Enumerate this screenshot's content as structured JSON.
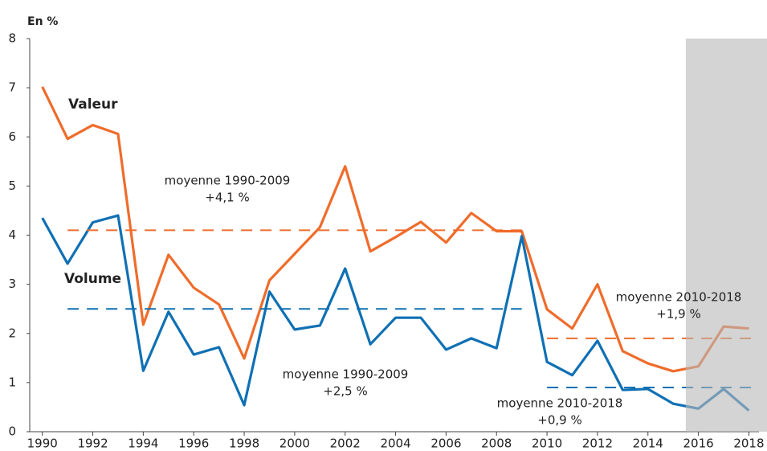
{
  "chart_data": {
    "type": "line",
    "y_axis_label": "En %",
    "x": [
      1990,
      1991,
      1992,
      1993,
      1994,
      1995,
      1996,
      1997,
      1998,
      1999,
      2000,
      2001,
      2002,
      2003,
      2004,
      2005,
      2006,
      2007,
      2008,
      2009,
      2010,
      2011,
      2012,
      2013,
      2014,
      2015,
      2016,
      2017,
      2018
    ],
    "series": [
      {
        "name": "Valeur",
        "color": "#ef6c2b",
        "values": [
          7.02,
          5.96,
          6.24,
          6.06,
          2.18,
          3.6,
          2.93,
          2.59,
          1.49,
          3.08,
          3.62,
          4.16,
          5.4,
          3.67,
          3.96,
          4.27,
          3.85,
          4.45,
          4.08,
          4.08,
          2.49,
          2.1,
          3.0,
          1.64,
          1.39,
          1.23,
          1.33,
          2.14,
          2.1
        ]
      },
      {
        "name": "Volume",
        "color": "#0f70b4",
        "values": [
          4.35,
          3.42,
          4.26,
          4.4,
          1.24,
          2.44,
          1.57,
          1.72,
          0.54,
          2.85,
          2.08,
          2.16,
          3.32,
          1.78,
          2.32,
          2.32,
          1.67,
          1.9,
          1.7,
          3.98,
          1.42,
          1.15,
          1.85,
          0.85,
          0.87,
          0.57,
          0.47,
          0.87,
          0.43
        ]
      }
    ],
    "averages": [
      {
        "series": 0,
        "label": "moyenne 1990-2009",
        "value_label": "+4,1 %",
        "value": 4.1,
        "period": [
          1991,
          2009
        ]
      },
      {
        "series": 1,
        "label": "moyenne 1990-2009",
        "value_label": "+2,5 %",
        "value": 2.5,
        "period": [
          1991,
          2009
        ]
      },
      {
        "series": 0,
        "label": "moyenne 2010-2018",
        "value_label": "+1,9 %",
        "value": 1.9,
        "period": [
          2010,
          2018.4
        ]
      },
      {
        "series": 1,
        "label": "moyenne 2010-2018",
        "value_label": "+0,9 %",
        "value": 0.9,
        "period": [
          2010,
          2018.4
        ]
      }
    ],
    "shaded_region": [
      2015.5,
      2018.4
    ],
    "xlim": [
      1989.5,
      2018.4
    ],
    "xticks": [
      1990,
      1992,
      1994,
      1996,
      1998,
      2000,
      2002,
      2004,
      2006,
      2008,
      2010,
      2012,
      2014,
      2016,
      2018
    ],
    "ylim": [
      0,
      8
    ],
    "yticks": [
      0,
      1,
      2,
      3,
      4,
      5,
      6,
      7,
      8
    ]
  }
}
